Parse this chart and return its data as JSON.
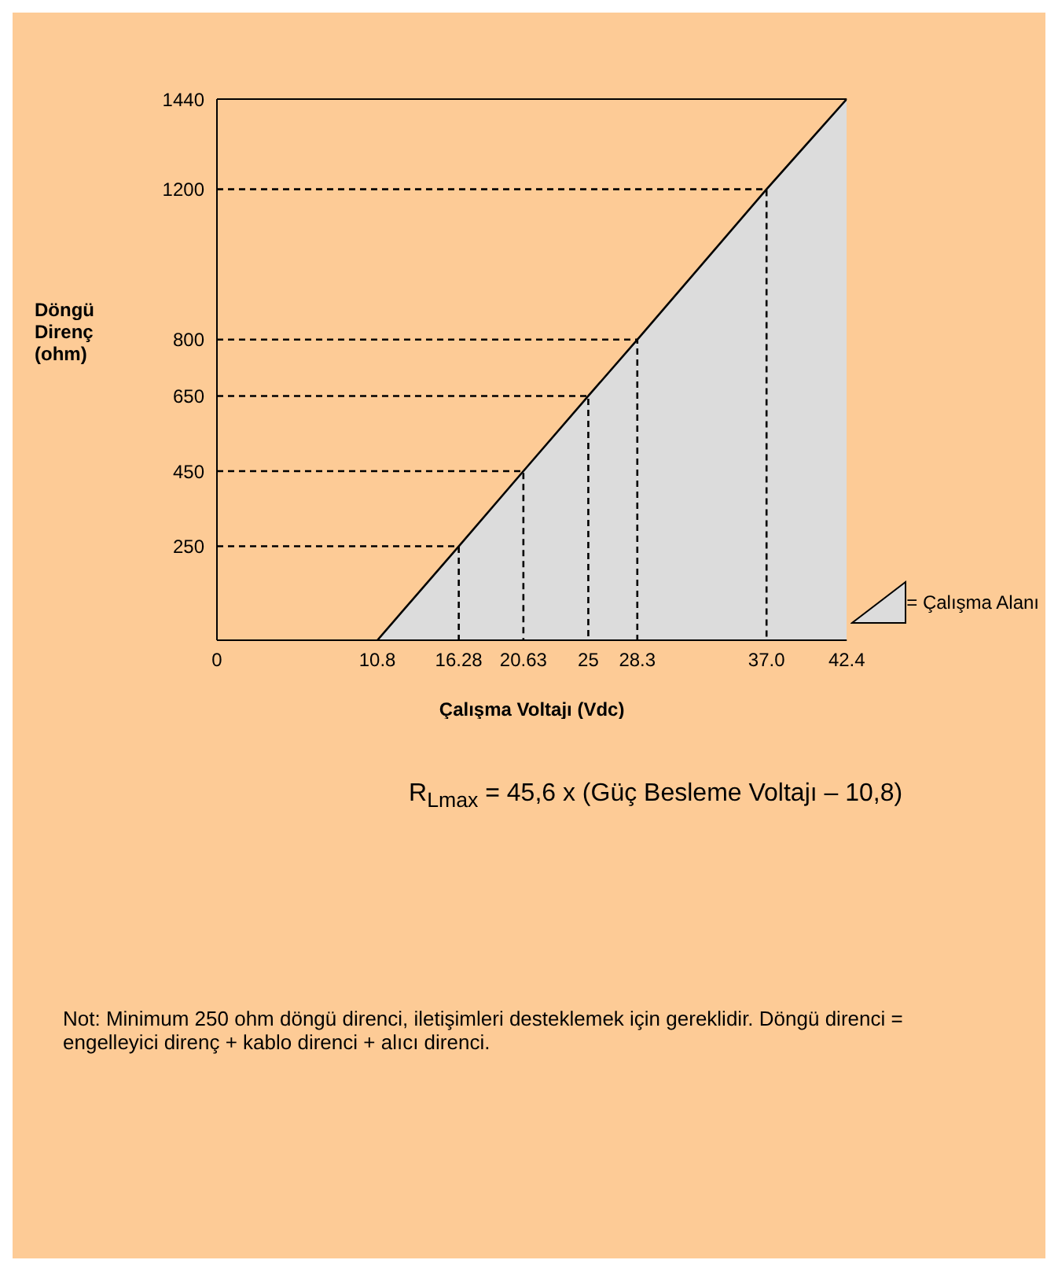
{
  "chart_data": {
    "type": "area",
    "xlabel": "Çalışma Voltajı (Vdc)",
    "ylabel": "Döngü Direnç (ohm)",
    "x": [
      10.8,
      16.28,
      20.63,
      25,
      28.3,
      37.0,
      42.4
    ],
    "series": [
      {
        "name": "= Çalışma Alanı",
        "color": "#dcdcdc",
        "values": [
          0,
          250,
          450,
          650,
          800,
          1200,
          1440
        ]
      },
      {
        "type": "line",
        "color": "#000000",
        "line_style": "dashed",
        "x": [
          0,
          16.28,
          16.28
        ],
        "values": [
          250,
          250,
          0
        ]
      },
      {
        "type": "line",
        "color": "#000000",
        "line_style": "dashed",
        "x": [
          0,
          20.63,
          20.63
        ],
        "values": [
          450,
          450,
          0
        ]
      },
      {
        "type": "line",
        "color": "#000000",
        "line_style": "dashed",
        "x": [
          0,
          25,
          25
        ],
        "values": [
          650,
          650,
          0
        ]
      },
      {
        "type": "line",
        "color": "#000000",
        "line_style": "dashed",
        "x": [
          0,
          28.3,
          28.3
        ],
        "values": [
          800,
          800,
          0
        ]
      },
      {
        "type": "line",
        "color": "#000000",
        "line_style": "dashed",
        "x": [
          0,
          37.0,
          37.0
        ],
        "values": [
          1200,
          1200,
          0
        ]
      }
    ],
    "xlim": [
      0,
      42.4
    ],
    "xticks": [
      0,
      10.8,
      16.28,
      20.63,
      25,
      {
        "value": 28.3,
        "label": "28.3"
      },
      {
        "value": 37.0,
        "label": "37.0"
      },
      42.4
    ],
    "ylim": [
      0,
      1440
    ],
    "yticks": [
      250,
      450,
      650,
      800,
      1200,
      1440
    ],
    "legend": "right",
    "annotations": [
      "R$_{Lmax}$ = 45,6 x (Güç Besleme Voltajı – 10,8)",
      "Not: Minimum 250 ohm döngü direnci, iletişimleri desteklemek için gereklidir. Döngü direnci = engelleyici direnç + kablo direnci + alıcı direnci."
    ]
  }
}
